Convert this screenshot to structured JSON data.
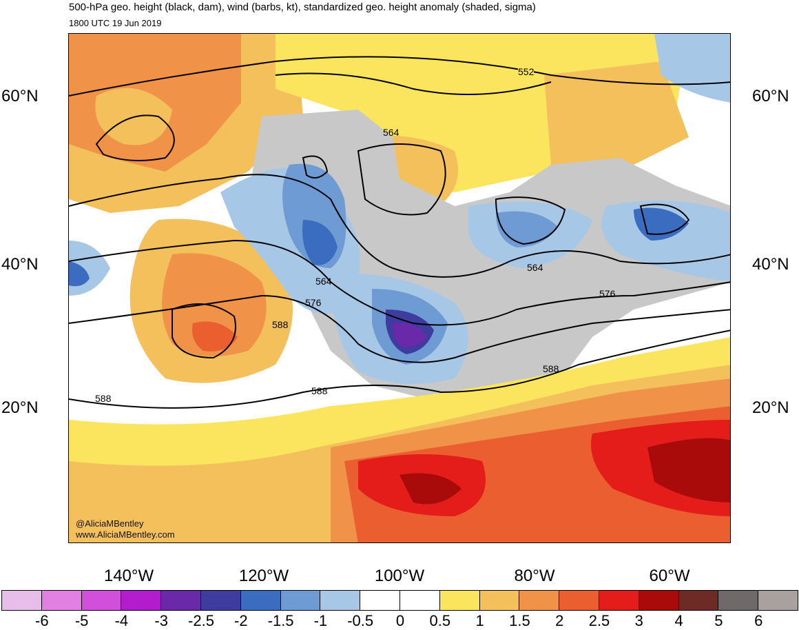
{
  "title": "500-hPa geo. height (black, dam), wind (barbs, kt), standardized geo. height anomaly (shaded, sigma)",
  "valid_time": "1800 UTC 19 Jun 2019",
  "credits": [
    "@AliciaMBentley",
    "www.AliciaMBentley.com"
  ],
  "lat_labels": [
    "60°N",
    "40°N",
    "20°N"
  ],
  "lon_labels": [
    "140°W",
    "120°W",
    "100°W",
    "80°W",
    "60°W"
  ],
  "contour_labels": [
    "552",
    "564",
    "564",
    "564",
    "576",
    "576",
    "588",
    "588",
    "588",
    "588"
  ],
  "colorbar": {
    "ticks": [
      "-6",
      "-5",
      "-4",
      "-3",
      "-2.5",
      "-2",
      "-1.5",
      "-1",
      "-0.5",
      "0",
      "0.5",
      "1",
      "1.5",
      "2",
      "2.5",
      "3",
      "4",
      "5",
      "6"
    ],
    "colors": [
      "#e9bde9",
      "#e27fe2",
      "#d24fdb",
      "#b31ccd",
      "#6a29a8",
      "#3e3c9f",
      "#3a6cc0",
      "#6f9bd4",
      "#a6c8e6",
      "#ffffff",
      "#ffffff",
      "#fbe55e",
      "#f3c05c",
      "#f09248",
      "#eb5e2f",
      "#e41d1a",
      "#a90b0b",
      "#6e2a24",
      "#6f6a69",
      "#a9a1a0"
    ]
  },
  "colors": {
    "land": "#c8c8c8",
    "ocean": "#ffffff",
    "border": "#555555"
  }
}
